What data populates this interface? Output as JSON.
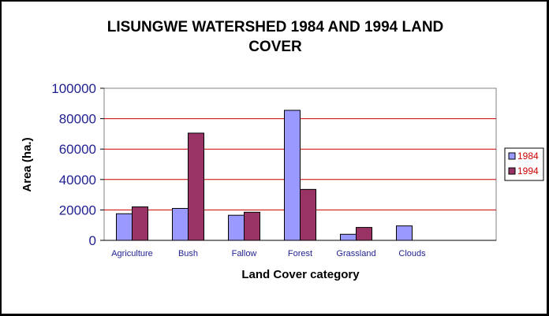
{
  "chart_data": {
    "type": "bar",
    "title_lines": [
      "LISUNGWE WATERSHED 1984 AND 1994 LAND",
      "COVER"
    ],
    "xlabel": "Land Cover category",
    "ylabel": "Area (ha.)",
    "categories": [
      "Agriculture",
      "Bush",
      "Fallow",
      "Forest",
      "Grassland",
      "Clouds"
    ],
    "ylim": [
      0,
      100000
    ],
    "yticks": [
      "0",
      "20000",
      "40000",
      "60000",
      "80000",
      "100000"
    ],
    "grid": true,
    "legend_position": "right",
    "series": [
      {
        "name": "1984",
        "color": "#9999ff",
        "values": [
          17500,
          21000,
          16500,
          85500,
          4000,
          9500
        ]
      },
      {
        "name": "1994",
        "color": "#993366",
        "values": [
          22000,
          70500,
          18500,
          33500,
          8500,
          0
        ]
      }
    ],
    "colors": {
      "gridline": "#cc0000",
      "tick_text": "#1f1f8f",
      "legend_text": "#cc0000"
    }
  }
}
